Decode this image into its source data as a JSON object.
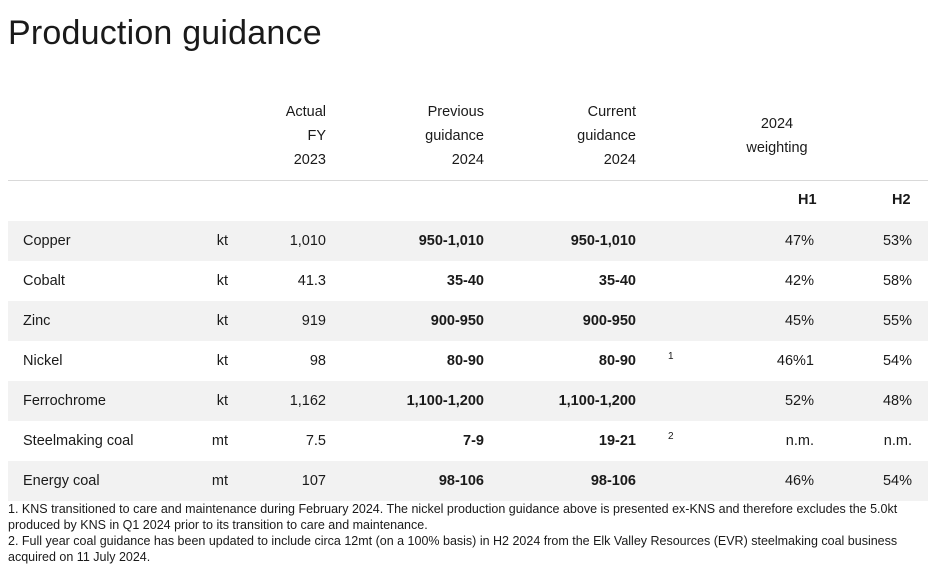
{
  "title": "Production guidance",
  "headers": {
    "actual": [
      "Actual",
      "FY",
      "2023"
    ],
    "previous": [
      "Previous",
      "guidance",
      "2024"
    ],
    "current": [
      "Current",
      "guidance",
      "2024"
    ],
    "weighting": [
      "2024",
      "weighting"
    ],
    "h1": "H1",
    "h2": "H2"
  },
  "rows": [
    {
      "name": "Copper",
      "unit": "kt",
      "actual": "1,010",
      "previous": "950-1,010",
      "current": "950-1,010",
      "footnote": "",
      "h1": "47%",
      "h2": "53%"
    },
    {
      "name": "Cobalt",
      "unit": "kt",
      "actual": "41.3",
      "previous": "35-40",
      "current": "35-40",
      "footnote": "",
      "h1": "42%",
      "h2": "58%"
    },
    {
      "name": "Zinc",
      "unit": "kt",
      "actual": "919",
      "previous": "900-950",
      "current": "900-950",
      "footnote": "",
      "h1": "45%",
      "h2": "55%"
    },
    {
      "name": "Nickel",
      "unit": "kt",
      "actual": "98",
      "previous": "80-90",
      "current": "80-90",
      "footnote": "1",
      "h1": "46%1",
      "h2": "54%"
    },
    {
      "name": "Ferrochrome",
      "unit": "kt",
      "actual": "1,162",
      "previous": "1,100-1,200",
      "current": "1,100-1,200",
      "footnote": "",
      "h1": "52%",
      "h2": "48%"
    },
    {
      "name": "Steelmaking coal",
      "unit": "mt",
      "actual": "7.5",
      "previous": "7-9",
      "current": "19-21",
      "footnote": "2",
      "h1": "n.m.",
      "h2": "n.m."
    },
    {
      "name": "Energy coal",
      "unit": "mt",
      "actual": "107",
      "previous": "98-106",
      "current": "98-106",
      "footnote": "",
      "h1": "46%",
      "h2": "54%"
    }
  ],
  "footnotes": [
    "1. KNS transitioned to care and maintenance during February 2024. The nickel production guidance above is presented ex-KNS and therefore excludes the 5.0kt produced by KNS in Q1 2024 prior to its transition to care and maintenance.",
    "2. Full year coal guidance has been updated to include circa 12mt (on a 100% basis) in H2 2024 from the Elk Valley Resources (EVR) steelmaking coal business acquired on 11 July 2024."
  ]
}
